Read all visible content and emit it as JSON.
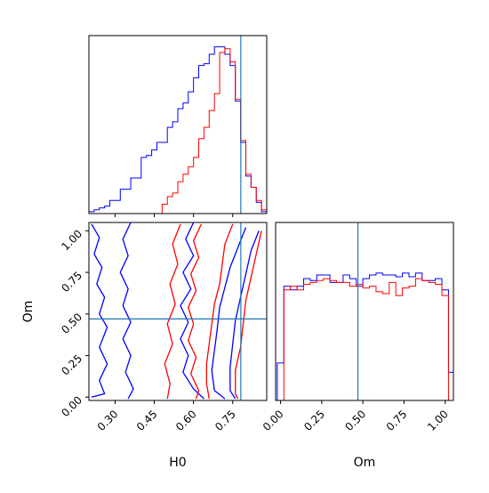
{
  "chart_data": [
    {
      "type": "histogram",
      "panel": "H0 marginal",
      "truth": 0.781,
      "xlim": [
        0.2,
        0.88
      ],
      "ylim": [
        0,
        190
      ],
      "bin_edges": [
        0.2,
        0.22,
        0.24,
        0.26,
        0.28,
        0.3,
        0.32,
        0.34,
        0.36,
        0.38,
        0.4,
        0.42,
        0.44,
        0.46,
        0.48,
        0.5,
        0.52,
        0.54,
        0.56,
        0.58,
        0.6,
        0.62,
        0.64,
        0.66,
        0.68,
        0.7,
        0.72,
        0.74,
        0.76,
        0.78,
        0.8,
        0.82,
        0.84,
        0.86,
        0.88
      ],
      "series": [
        {
          "color": "#0000ff",
          "values": [
            2,
            4,
            6,
            8,
            14,
            14,
            26,
            26,
            38,
            38,
            60,
            62,
            68,
            76,
            76,
            92,
            98,
            112,
            118,
            130,
            145,
            158,
            160,
            170,
            178,
            178,
            170,
            158,
            120,
            76,
            40,
            28,
            12,
            2
          ]
        },
        {
          "color": "#ff0000",
          "values": [
            0,
            0,
            0,
            0,
            0,
            0,
            0,
            0,
            0,
            0,
            0,
            0,
            0,
            0,
            10,
            18,
            22,
            34,
            42,
            50,
            60,
            80,
            92,
            110,
            128,
            172,
            176,
            162,
            122,
            78,
            42,
            28,
            14,
            4
          ]
        }
      ]
    },
    {
      "type": "contour",
      "panel": "H0 vs Om",
      "xlabel": "H0",
      "ylabel": "Om",
      "xlim": [
        0.2,
        0.88
      ],
      "ylim": [
        -0.02,
        1.05
      ],
      "xticks": [
        "0.30",
        "0.45",
        "0.60",
        "0.75"
      ],
      "yticks": [
        "0.00",
        "0.25",
        "0.50",
        "0.75",
        "1.00"
      ],
      "truth": {
        "H0": 0.781,
        "Om": 0.47
      },
      "series": [
        {
          "color": "#0000ff",
          "contours": [
            [
              [
                0.21,
                1.04
              ],
              [
                0.24,
                0.96
              ],
              [
                0.22,
                0.86
              ],
              [
                0.25,
                0.78
              ],
              [
                0.23,
                0.68
              ],
              [
                0.26,
                0.6
              ],
              [
                0.24,
                0.5
              ],
              [
                0.27,
                0.42
              ],
              [
                0.24,
                0.3
              ],
              [
                0.27,
                0.2
              ],
              [
                0.24,
                0.1
              ],
              [
                0.26,
                0.02
              ],
              [
                0.21,
                0.0
              ]
            ],
            [
              [
                0.36,
                1.05
              ],
              [
                0.33,
                0.95
              ],
              [
                0.35,
                0.85
              ],
              [
                0.32,
                0.75
              ],
              [
                0.35,
                0.65
              ],
              [
                0.33,
                0.55
              ],
              [
                0.36,
                0.45
              ],
              [
                0.33,
                0.35
              ],
              [
                0.36,
                0.25
              ],
              [
                0.34,
                0.15
              ],
              [
                0.37,
                0.05
              ],
              [
                0.35,
                -0.01
              ]
            ],
            [
              [
                0.6,
                1.05
              ],
              [
                0.57,
                0.95
              ],
              [
                0.6,
                0.85
              ],
              [
                0.56,
                0.75
              ],
              [
                0.59,
                0.65
              ],
              [
                0.55,
                0.55
              ],
              [
                0.58,
                0.45
              ],
              [
                0.55,
                0.35
              ],
              [
                0.58,
                0.25
              ],
              [
                0.56,
                0.15
              ],
              [
                0.6,
                0.05
              ],
              [
                0.64,
                -0.01
              ]
            ],
            [
              [
                0.8,
                1.02
              ],
              [
                0.77,
                0.9
              ],
              [
                0.74,
                0.78
              ],
              [
                0.72,
                0.66
              ],
              [
                0.7,
                0.54
              ],
              [
                0.69,
                0.4
              ],
              [
                0.68,
                0.28
              ],
              [
                0.67,
                0.16
              ],
              [
                0.68,
                0.04
              ],
              [
                0.72,
                -0.01
              ]
            ],
            [
              [
                0.85,
                1.0
              ],
              [
                0.82,
                0.88
              ],
              [
                0.8,
                0.74
              ],
              [
                0.78,
                0.6
              ],
              [
                0.76,
                0.46
              ],
              [
                0.75,
                0.32
              ],
              [
                0.74,
                0.18
              ],
              [
                0.74,
                0.04
              ],
              [
                0.76,
                -0.01
              ]
            ]
          ]
        },
        {
          "color": "#ff0000",
          "contours": [
            [
              [
                0.55,
                1.04
              ],
              [
                0.52,
                0.92
              ],
              [
                0.54,
                0.8
              ],
              [
                0.51,
                0.68
              ],
              [
                0.53,
                0.56
              ],
              [
                0.5,
                0.44
              ],
              [
                0.52,
                0.32
              ],
              [
                0.49,
                0.2
              ],
              [
                0.51,
                0.08
              ],
              [
                0.5,
                -0.01
              ]
            ],
            [
              [
                0.63,
                1.04
              ],
              [
                0.6,
                0.94
              ],
              [
                0.62,
                0.84
              ],
              [
                0.59,
                0.74
              ],
              [
                0.61,
                0.64
              ],
              [
                0.58,
                0.54
              ],
              [
                0.6,
                0.44
              ],
              [
                0.58,
                0.34
              ],
              [
                0.61,
                0.24
              ],
              [
                0.59,
                0.14
              ],
              [
                0.62,
                0.04
              ],
              [
                0.61,
                -0.01
              ]
            ],
            [
              [
                0.75,
                1.04
              ],
              [
                0.72,
                0.92
              ],
              [
                0.71,
                0.8
              ],
              [
                0.7,
                0.68
              ],
              [
                0.68,
                0.56
              ],
              [
                0.67,
                0.44
              ],
              [
                0.66,
                0.32
              ],
              [
                0.65,
                0.2
              ],
              [
                0.65,
                0.08
              ],
              [
                0.66,
                -0.01
              ]
            ],
            [
              [
                0.86,
                1.0
              ],
              [
                0.84,
                0.86
              ],
              [
                0.82,
                0.72
              ],
              [
                0.8,
                0.58
              ],
              [
                0.79,
                0.44
              ],
              [
                0.78,
                0.3
              ],
              [
                0.76,
                0.16
              ],
              [
                0.76,
                0.02
              ],
              [
                0.77,
                -0.01
              ]
            ]
          ]
        }
      ]
    },
    {
      "type": "histogram",
      "panel": "Om marginal",
      "xlabel": "Om",
      "truth": 0.47,
      "xlim": [
        -0.03,
        1.05
      ],
      "ylim": [
        0,
        190
      ],
      "xticks": [
        "0.00",
        "0.25",
        "0.50",
        "0.75",
        "1.00"
      ],
      "bin_edges": [
        -0.02,
        0.02,
        0.06,
        0.1,
        0.14,
        0.18,
        0.22,
        0.26,
        0.3,
        0.34,
        0.38,
        0.42,
        0.46,
        0.5,
        0.54,
        0.58,
        0.62,
        0.66,
        0.7,
        0.74,
        0.78,
        0.82,
        0.86,
        0.9,
        0.94,
        0.98,
        1.02,
        1.06
      ],
      "series": [
        {
          "color": "#0000ff",
          "values": [
            40,
            122,
            118,
            122,
            130,
            128,
            134,
            134,
            126,
            126,
            134,
            130,
            122,
            130,
            134,
            136,
            134,
            134,
            132,
            136,
            132,
            136,
            128,
            128,
            130,
            118,
            30
          ]
        },
        {
          "color": "#ff0000",
          "values": [
            0,
            118,
            122,
            118,
            124,
            126,
            128,
            130,
            128,
            126,
            126,
            122,
            124,
            120,
            122,
            116,
            114,
            126,
            112,
            120,
            122,
            130,
            128,
            126,
            124,
            112,
            0
          ]
        }
      ]
    }
  ]
}
